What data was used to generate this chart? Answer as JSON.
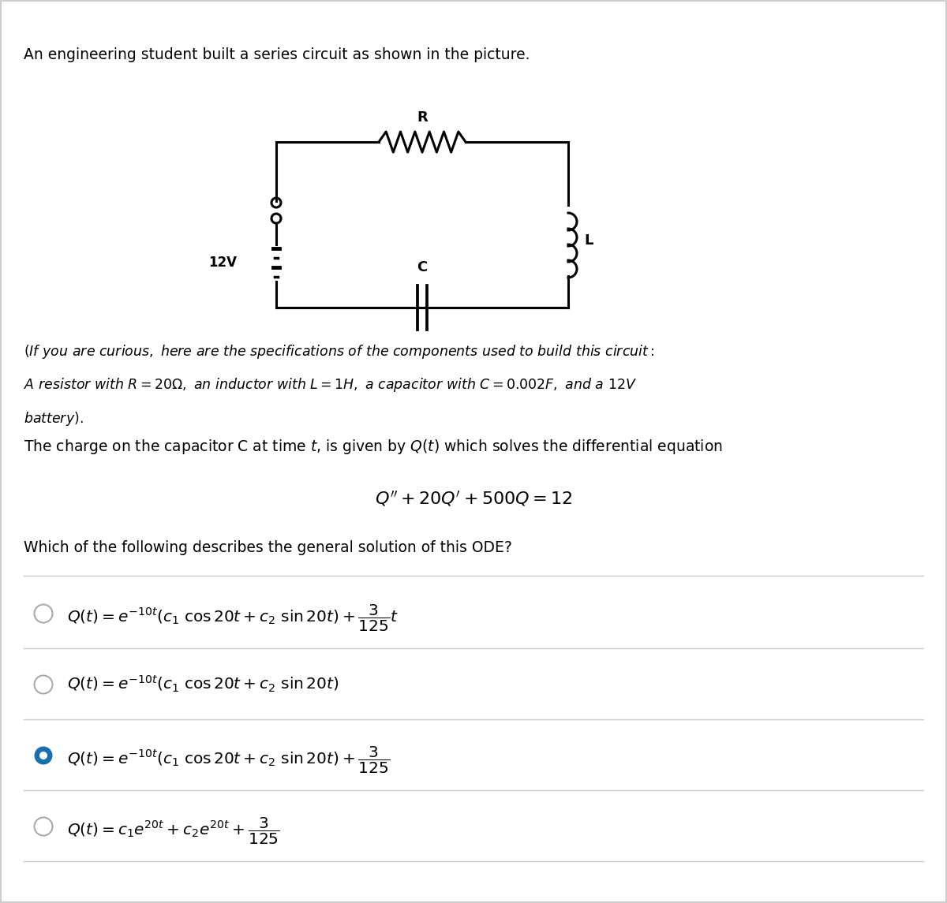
{
  "bg_color": "#ffffff",
  "border_color": "#cccccc",
  "text_color": "#000000",
  "blue_color": "#1a6faf",
  "title_text": "An engineering student built a series circuit as shown in the picture.",
  "specs_text": "(If you are curious, here are the specifications of the components used to build this circuit:\nA resistor with $R = 20\\Omega$, an inductor with $L = 1H$, a capacitor with $C = 0.002F$, and a $12V$\n battery).",
  "charge_text": "The charge on the capacitor C at time $t$, is given by $Q(t)$ which solves the differential equation",
  "ode_text": "$Q'' + 20Q' + 500Q = 12$",
  "question_text": "Which of the following describes the general solution of this ODE?",
  "options": [
    {
      "label": "$Q(t) = e^{-10t}(c_1 \\cos 20t + c_2 \\sin 20t) + \\dfrac{3}{125}t$",
      "selected": false
    },
    {
      "label": "$Q(t) = e^{-10t}(c_1 \\cos 20t + c_2 \\sin 20t)$",
      "selected": false
    },
    {
      "label": "$Q(t) = e^{-10t}(c_1 \\cos 20t + c_2 \\sin 20t) + \\dfrac{3}{125}$",
      "selected": true
    },
    {
      "label": "$Q(t) = c_1 e^{20t} + c_2 e^{20t} + \\dfrac{3}{125}$",
      "selected": false
    }
  ],
  "figsize": [
    12.0,
    11.45
  ],
  "dpi": 100
}
